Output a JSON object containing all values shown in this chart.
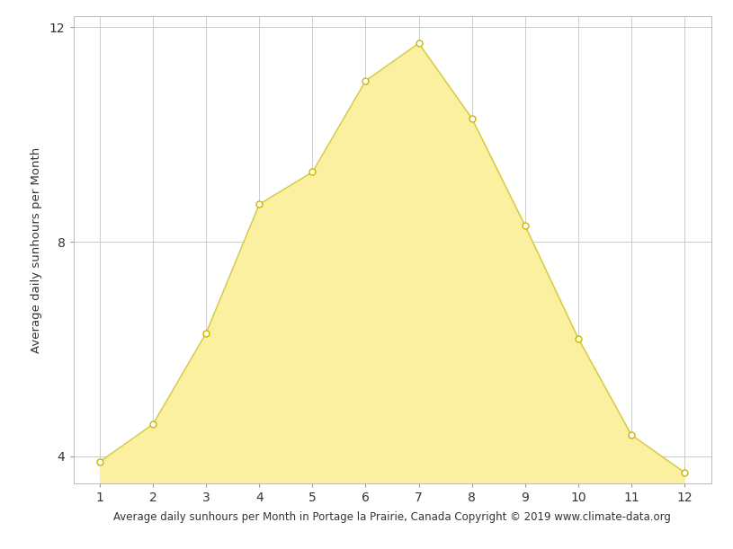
{
  "x": [
    1,
    2,
    3,
    4,
    5,
    6,
    7,
    8,
    9,
    10,
    11,
    12
  ],
  "y": [
    3.9,
    4.6,
    6.3,
    8.7,
    9.3,
    11.0,
    11.7,
    10.3,
    8.3,
    6.2,
    4.4,
    3.7
  ],
  "fill_color": "#FAF0A0",
  "line_color": "#D4C840",
  "marker_facecolor": "#FFFFFF",
  "marker_edgecolor": "#C8B800",
  "ylabel": "Average daily sunhours per Month",
  "xlabel": "Average daily sunhours per Month in Portage la Prairie, Canada Copyright © 2019 www.climate-data.org",
  "xlim": [
    0.5,
    12.5
  ],
  "ylim": [
    3.5,
    12.2
  ],
  "yticks": [
    4,
    8,
    12
  ],
  "xticks": [
    1,
    2,
    3,
    4,
    5,
    6,
    7,
    8,
    9,
    10,
    11,
    12
  ],
  "grid_color": "#CCCCCC",
  "background_color": "#FFFFFF",
  "xlabel_fontsize": 8.5,
  "ylabel_fontsize": 9.5,
  "tick_fontsize": 10,
  "marker_size": 5,
  "linewidth": 1.0
}
